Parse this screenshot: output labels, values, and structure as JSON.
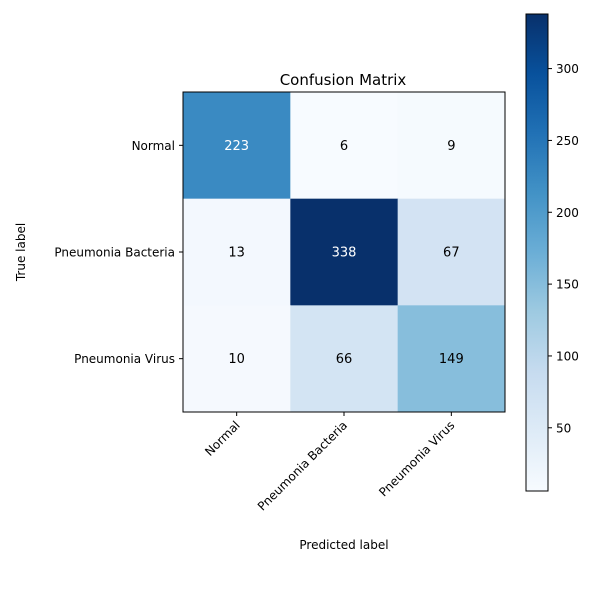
{
  "chart_data": {
    "type": "heatmap",
    "title": "Confusion Matrix",
    "xlabel": "Predicted label",
    "ylabel": "True label",
    "x_categories": [
      "Normal",
      "Pneumonia Bacteria",
      "Pneumonia Virus"
    ],
    "y_categories": [
      "Normal",
      "Pneumonia Bacteria",
      "Pneumonia Virus"
    ],
    "values": [
      [
        223,
        6,
        9
      ],
      [
        13,
        338,
        67
      ],
      [
        10,
        66,
        149
      ]
    ],
    "colorbar": {
      "min": 6,
      "max": 338,
      "ticks": [
        50,
        100,
        150,
        200,
        250,
        300
      ],
      "tick_labels": [
        "50",
        "100",
        "150",
        "200",
        "250",
        "300"
      ],
      "colormap": "Blues"
    },
    "text_color_threshold": 172
  }
}
